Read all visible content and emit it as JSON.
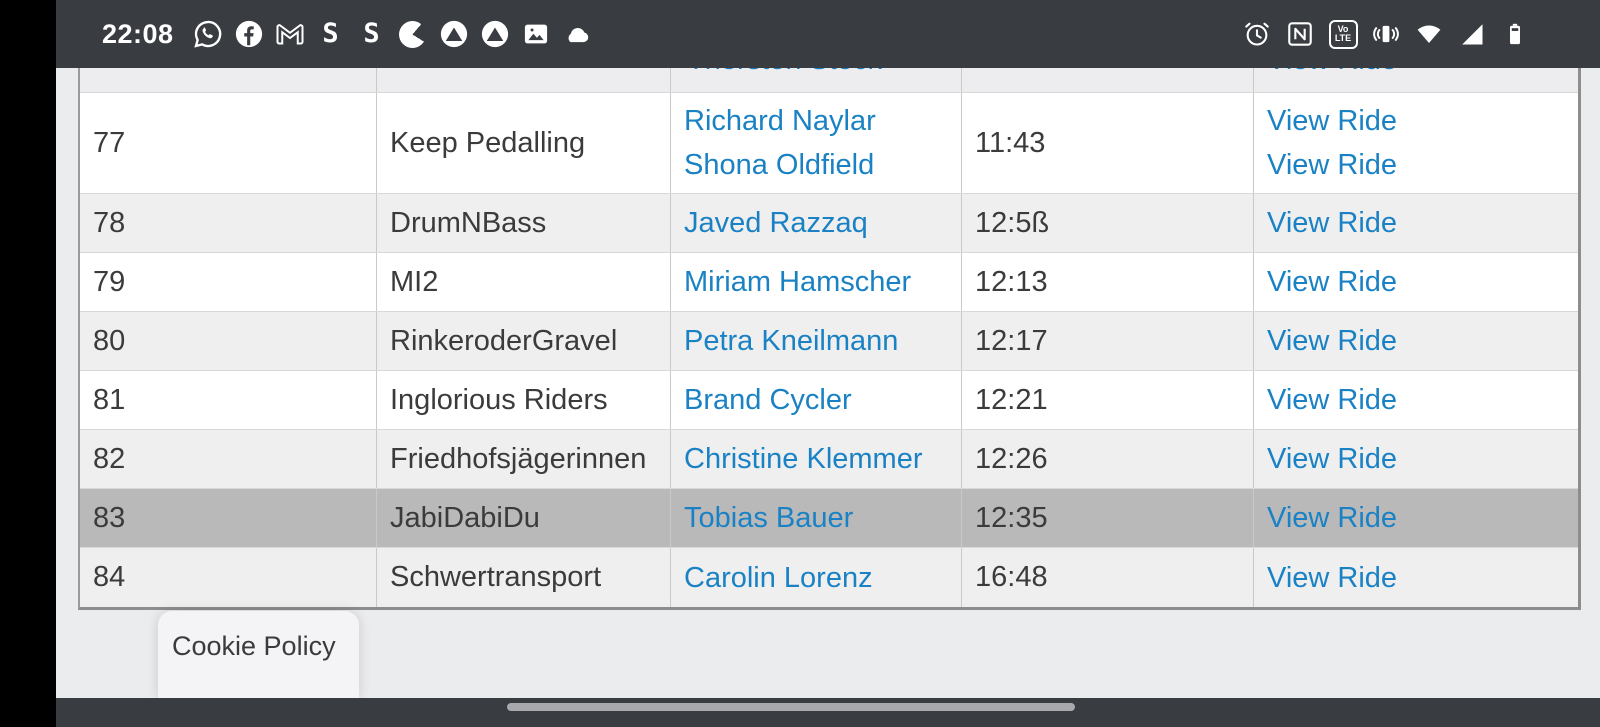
{
  "status_bar": {
    "time": "22:08",
    "left_icons": [
      "whatsapp-icon",
      "facebook-icon",
      "gmail-icon",
      "s-app-icon",
      "s-app-icon",
      "pie-icon",
      "mountain-icon",
      "mountain-icon",
      "gallery-icon",
      "cloud-icon"
    ],
    "right_icons": [
      "alarm-icon",
      "nfc-icon",
      "volte-icon",
      "vibration-icon",
      "wifi-icon",
      "signal-icon",
      "battery-icon"
    ],
    "s_glyph": "S",
    "volte_top": "Vo",
    "volte_bottom": "LTE"
  },
  "table": {
    "partial_top_row": {
      "rider": "Thorsten Stock",
      "view_ride": "View Ride"
    },
    "rows": [
      {
        "number": "77",
        "team": "Keep Pedalling",
        "riders": [
          "Richard Naylar",
          "Shona Oldfield"
        ],
        "time": "11:43",
        "view_links": [
          "View Ride",
          "View Ride"
        ],
        "highlighted": false
      },
      {
        "number": "78",
        "team": "DrumNBass",
        "riders": [
          "Javed Razzaq"
        ],
        "time": "12:5ß",
        "view_links": [
          "View Ride"
        ],
        "highlighted": false
      },
      {
        "number": "79",
        "team": "MI2",
        "riders": [
          "Miriam Hamscher"
        ],
        "time": "12:13",
        "view_links": [
          "View Ride"
        ],
        "highlighted": false
      },
      {
        "number": "80",
        "team": "RinkeroderGravel",
        "riders": [
          "Petra Kneilmann"
        ],
        "time": "12:17",
        "view_links": [
          "View Ride"
        ],
        "highlighted": false
      },
      {
        "number": "81",
        "team": "Inglorious Riders",
        "riders": [
          "Brand Cycler"
        ],
        "time": "12:21",
        "view_links": [
          "View Ride"
        ],
        "highlighted": false
      },
      {
        "number": "82",
        "team": "Friedhofsjägerinnen",
        "riders": [
          "Christine Klemmer"
        ],
        "time": "12:26",
        "view_links": [
          "View Ride"
        ],
        "highlighted": false
      },
      {
        "number": "83",
        "team": "JabiDabiDu",
        "riders": [
          "Tobias Bauer"
        ],
        "time": "12:35",
        "view_links": [
          "View Ride"
        ],
        "highlighted": true
      },
      {
        "number": "84",
        "team": "Schwertransport",
        "riders": [
          "Carolin Lorenz"
        ],
        "time": "16:48",
        "view_links": [
          "View Ride"
        ],
        "highlighted": false
      }
    ]
  },
  "footer": {
    "cookie_policy_label": "Cookie Policy"
  },
  "colors": {
    "link_blue": "#1a82c4",
    "row_stripe": "#efeff0",
    "row_highlight": "#b9b9ba",
    "bar_dark": "#393c41",
    "page_bg": "#ebecee"
  }
}
